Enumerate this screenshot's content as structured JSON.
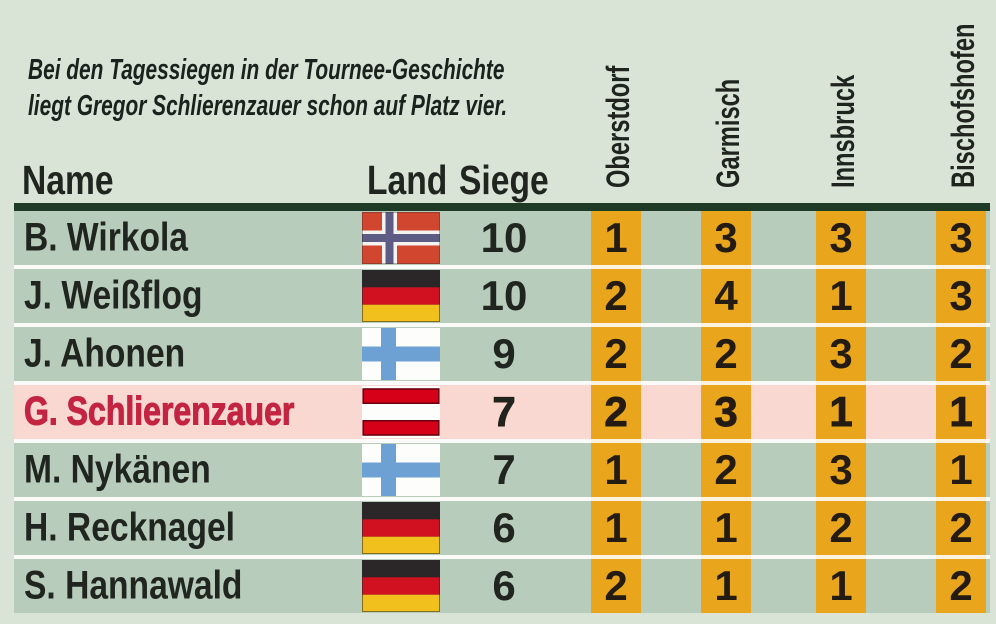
{
  "intro": {
    "line1": "Bei den Tagessiegen in der Tournee-Geschichte",
    "line2": "liegt Gregor Schlierenzauer schon auf Platz vier."
  },
  "table": {
    "headers": {
      "name": "Name",
      "land": "Land",
      "siege": "Siege"
    },
    "venue_headers": [
      "Oberstdorf",
      "Garmisch",
      "Innsbruck",
      "Bischofshofen"
    ],
    "rows": [
      {
        "name": "B. Wirkola",
        "country": "norway",
        "siege": "10",
        "venues": [
          "1",
          "3",
          "3",
          "3"
        ],
        "highlight": false
      },
      {
        "name": "J. Weißflog",
        "country": "germany",
        "siege": "10",
        "venues": [
          "2",
          "4",
          "1",
          "3"
        ],
        "highlight": false
      },
      {
        "name": "J. Ahonen",
        "country": "finland",
        "siege": "9",
        "venues": [
          "2",
          "2",
          "3",
          "2"
        ],
        "highlight": false
      },
      {
        "name": "G. Schlierenzauer",
        "country": "austria",
        "siege": "7",
        "venues": [
          "2",
          "3",
          "1",
          "1"
        ],
        "highlight": true
      },
      {
        "name": "M. Nykänen",
        "country": "finland",
        "siege": "7",
        "venues": [
          "1",
          "2",
          "3",
          "1"
        ],
        "highlight": false
      },
      {
        "name": "H. Recknagel",
        "country": "germany",
        "siege": "6",
        "venues": [
          "1",
          "1",
          "2",
          "2"
        ],
        "highlight": false
      },
      {
        "name": "S. Hannawald",
        "country": "germany",
        "siege": "6",
        "venues": [
          "2",
          "1",
          "1",
          "2"
        ],
        "highlight": false
      }
    ]
  },
  "colors": {
    "background": "#d9e4d7",
    "row_green": "#b8ccbc",
    "row_highlight_pink": "#f8d8d1",
    "accent_orange": "#e9a61d",
    "divider_dark_green": "#1e3b25",
    "text_dark": "#20261f",
    "highlight_red": "#c32441"
  },
  "chart_data": {
    "type": "table",
    "title": "Bei den Tagessiegen in der Tournee-Geschichte liegt Gregor Schlierenzauer schon auf Platz vier.",
    "columns": [
      "Name",
      "Land",
      "Siege",
      "Oberstdorf",
      "Garmisch",
      "Innsbruck",
      "Bischofshofen"
    ],
    "rows": [
      [
        "B. Wirkola",
        "norway",
        10,
        1,
        3,
        3,
        3
      ],
      [
        "J. Weißflog",
        "germany",
        10,
        2,
        4,
        1,
        3
      ],
      [
        "J. Ahonen",
        "finland",
        9,
        2,
        2,
        3,
        2
      ],
      [
        "G. Schlierenzauer",
        "austria",
        7,
        2,
        3,
        1,
        1
      ],
      [
        "M. Nykänen",
        "finland",
        7,
        1,
        2,
        3,
        1
      ],
      [
        "H. Recknagel",
        "germany",
        6,
        1,
        1,
        2,
        2
      ],
      [
        "S. Hannawald",
        "germany",
        6,
        2,
        1,
        1,
        2
      ]
    ],
    "highlighted_row": "G. Schlierenzauer",
    "legend_position": "none",
    "grid": false
  }
}
